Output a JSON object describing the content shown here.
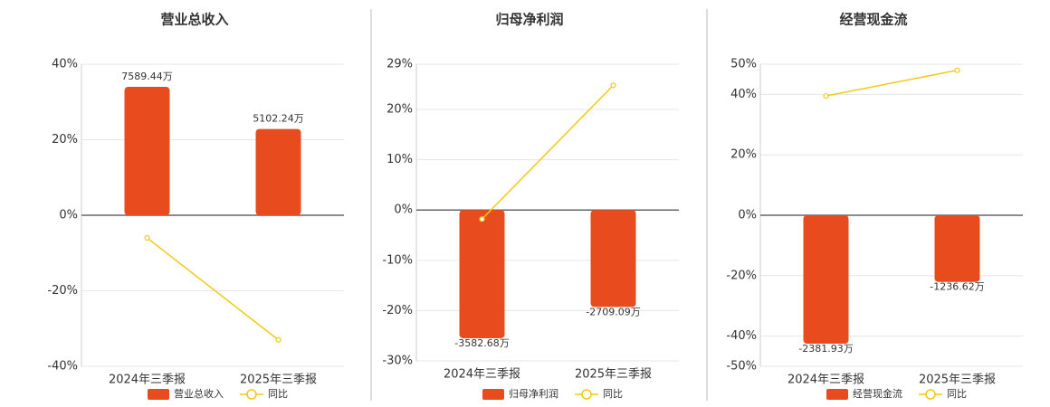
{
  "chart_data": [
    {
      "type": "bar",
      "title": "营业总收入",
      "categories": [
        "2024年三季报",
        "2025年三季报"
      ],
      "series": [
        {
          "name": "营业总收入",
          "type": "bar",
          "color": "#e84c1e",
          "values": [
            7589.44,
            5102.24
          ],
          "value_labels": [
            "7589.44万",
            "5102.24万"
          ]
        },
        {
          "name": "同比",
          "type": "line",
          "color": "#f2c811",
          "values": [
            -6,
            -33
          ]
        }
      ],
      "ylim": [
        -40,
        40
      ],
      "yticks": [
        {
          "value": -40,
          "label": "-40%"
        },
        {
          "value": -20,
          "label": "-20%"
        },
        {
          "value": 0,
          "label": "0%"
        },
        {
          "value": 20,
          "label": "20%"
        },
        {
          "value": 40,
          "label": "40%"
        }
      ],
      "grid": true
    },
    {
      "type": "bar",
      "title": "归母净利润",
      "categories": [
        "2024年三季报",
        "2025年三季报"
      ],
      "series": [
        {
          "name": "归母净利润",
          "type": "bar",
          "color": "#e84c1e",
          "values": [
            -3582.68,
            -2709.09
          ],
          "value_labels": [
            "-3582.68万",
            "-2709.09万"
          ]
        },
        {
          "name": "同比",
          "type": "line",
          "color": "#f2c811",
          "values": [
            -1.8,
            24.8
          ]
        }
      ],
      "ylim": [
        -30,
        29
      ],
      "yticks": [
        {
          "value": -30,
          "label": "-30%"
        },
        {
          "value": -20,
          "label": "-20%"
        },
        {
          "value": -10,
          "label": "-10%"
        },
        {
          "value": 0,
          "label": "0%"
        },
        {
          "value": 10,
          "label": "10%"
        },
        {
          "value": 20,
          "label": "20%"
        },
        {
          "value": 29,
          "label": "29%"
        }
      ],
      "grid": true
    },
    {
      "type": "bar",
      "title": "经营现金流",
      "categories": [
        "2024年三季报",
        "2025年三季报"
      ],
      "series": [
        {
          "name": "经营现金流",
          "type": "bar",
          "color": "#e84c1e",
          "values": [
            -2381.93,
            -1236.62
          ],
          "value_labels": [
            "-2381.93万",
            "-1236.62万"
          ]
        },
        {
          "name": "同比",
          "type": "line",
          "color": "#f2c811",
          "values": [
            39.5,
            48
          ]
        }
      ],
      "ylim": [
        -50,
        50
      ],
      "yticks": [
        {
          "value": -50,
          "label": "-50%"
        },
        {
          "value": -40,
          "label": "-40%"
        },
        {
          "value": -20,
          "label": "-20%"
        },
        {
          "value": 0,
          "label": "0%"
        },
        {
          "value": 20,
          "label": "20%"
        },
        {
          "value": 40,
          "label": "40%"
        },
        {
          "value": 50,
          "label": "50%"
        }
      ],
      "grid": true
    }
  ]
}
